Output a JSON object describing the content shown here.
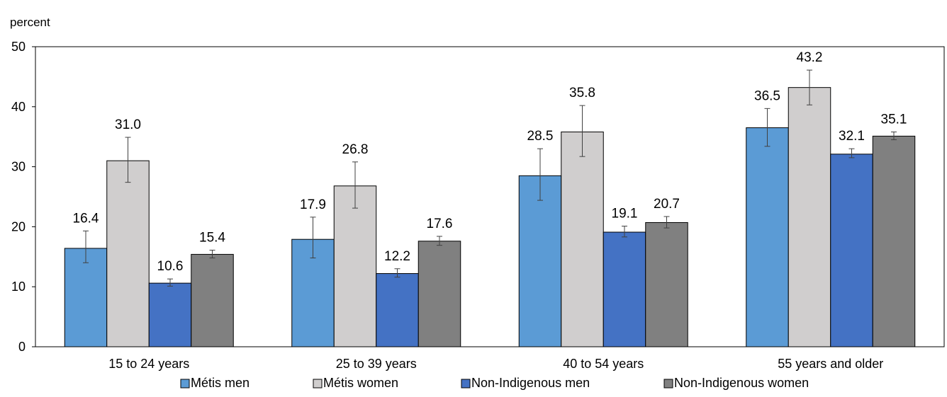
{
  "chart_data": {
    "type": "bar",
    "ylabel": "percent",
    "ylim": [
      0,
      50
    ],
    "yticks": [
      0,
      10,
      20,
      30,
      40,
      50
    ],
    "grid": false,
    "legend_position": "bottom",
    "categories": [
      "15 to 24 years",
      "25 to 39 years",
      "40 to 54 years",
      "55 years and older"
    ],
    "series": [
      {
        "name": "Métis men",
        "color": "#5b9bd5",
        "values": [
          16.4,
          17.9,
          28.5,
          36.5
        ],
        "error_low": [
          14.0,
          14.8,
          24.4,
          33.4
        ],
        "error_high": [
          19.3,
          21.6,
          33.0,
          39.7
        ]
      },
      {
        "name": "Métis women",
        "color": "#d0cece",
        "values": [
          31.0,
          26.8,
          35.8,
          43.2
        ],
        "error_low": [
          27.4,
          23.1,
          31.7,
          40.3
        ],
        "error_high": [
          34.9,
          30.8,
          40.2,
          46.1
        ]
      },
      {
        "name": "Non-Indigenous men",
        "color": "#4472c4",
        "values": [
          10.6,
          12.2,
          19.1,
          32.1
        ],
        "error_low": [
          10.1,
          11.6,
          18.3,
          31.5
        ],
        "error_high": [
          11.3,
          13.0,
          20.1,
          33.0
        ]
      },
      {
        "name": "Non-Indigenous women",
        "color": "#808080",
        "values": [
          15.4,
          17.6,
          20.7,
          35.1
        ],
        "error_low": [
          14.8,
          16.9,
          19.8,
          34.5
        ],
        "error_high": [
          16.1,
          18.4,
          21.7,
          35.8
        ]
      }
    ]
  }
}
